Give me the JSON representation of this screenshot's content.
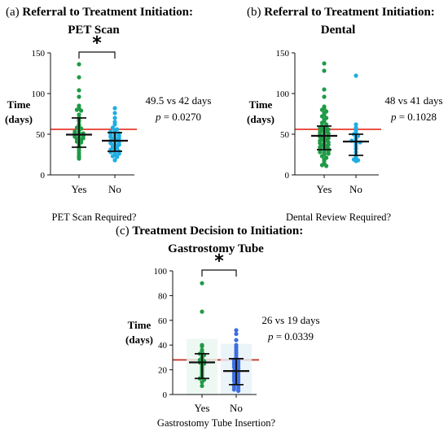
{
  "chart_data": [
    {
      "type": "scatter",
      "panel_label": "(a)",
      "title_line1": "Referral to Treatment Initiation:",
      "title_line2": "PET Scan",
      "ylabel_line1": "Time",
      "ylabel_line2": "(days)",
      "xlabel": "PET Scan Required?",
      "categories": [
        "Yes",
        "No"
      ],
      "ylim": [
        0,
        150
      ],
      "yticks": [
        0,
        50,
        100,
        150
      ],
      "reference_line": 56,
      "reference_color": "#e8392b",
      "significance": "*",
      "stat_line1": "49.5 vs 42 days",
      "stat_line2": "p = 0.0270",
      "series": [
        {
          "category": "Yes",
          "color": "#1f9a46",
          "median": 49.5,
          "q1": 34,
          "q3": 70,
          "values": [
            136,
            120,
            104,
            96,
            85,
            82,
            80,
            79,
            74,
            70,
            68,
            66,
            62,
            60,
            58,
            57,
            55,
            53,
            52,
            51,
            50,
            49,
            48,
            47,
            46,
            45,
            44,
            43,
            41,
            40,
            38,
            35,
            33,
            30,
            27,
            24,
            22,
            20
          ]
        },
        {
          "category": "No",
          "color": "#1eaee3",
          "median": 42,
          "q1": 29,
          "q3": 52,
          "values": [
            82,
            76,
            70,
            65,
            62,
            58,
            56,
            55,
            53,
            52,
            51,
            50,
            49,
            48,
            47,
            46,
            45,
            44,
            43,
            42,
            41,
            40,
            39,
            38,
            37,
            36,
            35,
            34,
            33,
            31,
            30,
            29,
            28,
            27,
            26,
            25,
            23,
            22,
            18
          ]
        }
      ]
    },
    {
      "type": "scatter",
      "panel_label": "(b)",
      "title_line1": "Referral to Treatment Initiation:",
      "title_line2": "Dental",
      "ylabel_line1": "Time",
      "ylabel_line2": "(days)",
      "xlabel": "Dental Review Required?",
      "categories": [
        "Yes",
        "No"
      ],
      "ylim": [
        0,
        150
      ],
      "yticks": [
        0,
        50,
        100,
        150
      ],
      "reference_line": 56,
      "reference_color": "#e8392b",
      "significance": "",
      "stat_line1": "48 vs 41 days",
      "stat_line2": "p = 0.1028",
      "series": [
        {
          "category": "Yes",
          "color": "#1f9a46",
          "median": 48,
          "q1": 31,
          "q3": 60,
          "values": [
            137,
            128,
            105,
            96,
            84,
            82,
            80,
            78,
            76,
            74,
            72,
            70,
            68,
            66,
            64,
            62,
            60,
            59,
            58,
            57,
            56,
            55,
            54,
            53,
            52,
            51,
            50,
            49,
            48,
            47,
            46,
            45,
            44,
            43,
            42,
            41,
            40,
            39,
            38,
            37,
            36,
            35,
            34,
            33,
            32,
            31,
            30,
            29,
            28,
            27,
            26,
            25,
            23,
            21,
            19,
            17,
            14,
            12,
            11
          ]
        },
        {
          "category": "No",
          "color": "#1eaee3",
          "median": 41,
          "q1": 24,
          "q3": 50,
          "values": [
            122,
            62,
            58,
            55,
            52,
            50,
            48,
            46,
            44,
            42,
            41,
            40,
            38,
            35,
            32,
            28,
            24,
            22,
            19,
            18,
            17
          ]
        }
      ]
    },
    {
      "type": "scatter",
      "panel_label": "(c)",
      "title_line1": "Treatment Decision to Initiation:",
      "title_line2": "Gastrostomy Tube",
      "ylabel_line1": "Time",
      "ylabel_line2": "(days)",
      "xlabel": "Gastrostomy Tube Insertion?",
      "categories": [
        "Yes",
        "No"
      ],
      "ylim": [
        0,
        100
      ],
      "yticks": [
        0,
        20,
        40,
        60,
        80,
        100
      ],
      "reference_line": 28,
      "reference_color": "#c0392b",
      "significance": "*",
      "stat_line1": "26 vs 19 days",
      "stat_line2": "p = 0.0339",
      "series": [
        {
          "category": "Yes",
          "color": "#1f9a46",
          "median": 26,
          "q1": 13,
          "q3": 33,
          "values": [
            90,
            67,
            40,
            39,
            36,
            34,
            33,
            32,
            30,
            29,
            28,
            27,
            26,
            25,
            24,
            22,
            20,
            18,
            16,
            14,
            13,
            12,
            10,
            7
          ]
        },
        {
          "category": "No",
          "color": "#3d6ee0",
          "median": 19,
          "q1": 8,
          "q3": 29,
          "values": [
            52,
            49,
            44,
            40,
            38,
            36,
            34,
            32,
            30,
            29,
            28,
            27,
            26,
            25,
            24,
            23,
            22,
            21,
            20,
            19,
            18,
            17,
            16,
            15,
            14,
            13,
            12,
            11,
            10,
            9,
            8,
            7,
            6,
            5,
            4,
            3
          ]
        }
      ]
    }
  ]
}
